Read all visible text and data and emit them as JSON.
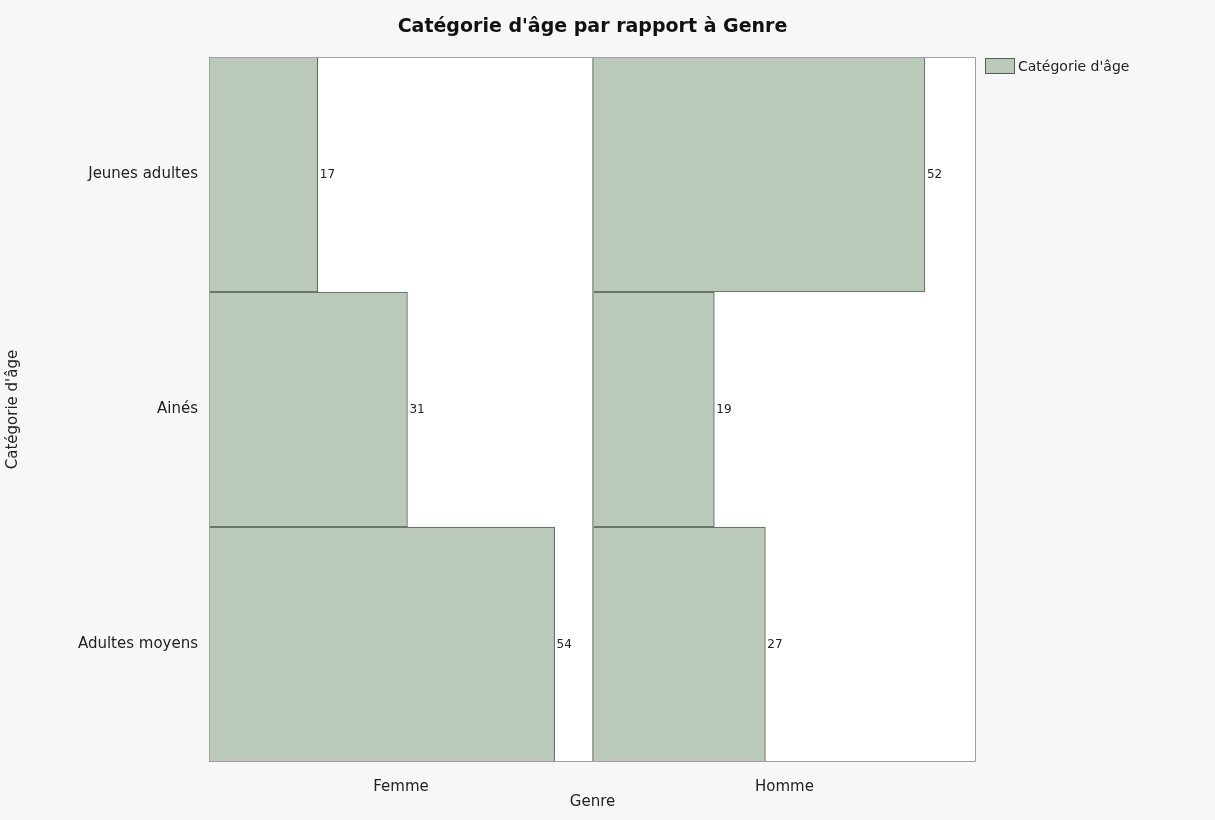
{
  "chart_data": [
    {
      "type": "bar",
      "orientation": "horizontal",
      "title": "Catégorie d'âge par rapport à Genre",
      "ylabel": "Catégorie d'âge",
      "xlabel": "Femme",
      "categories": [
        "Jeunes adultes",
        "Ainés",
        "Adultes moyens"
      ],
      "series": [
        {
          "name": "Catégorie d'âge",
          "color": "#bac9ba",
          "values": [
            17,
            31,
            54
          ]
        }
      ],
      "data_labels": true,
      "tick_labels": "y",
      "legend": "right",
      "annotations": [
        "Genre"
      ]
    },
    {
      "type": "bar",
      "orientation": "horizontal",
      "xlabel": "Homme",
      "categories": [
        null,
        null,
        null
      ],
      "series": [
        {
          "color": "#bac9ba",
          "values": [
            52,
            19,
            27
          ]
        }
      ],
      "data_labels": true,
      "tick_labels": false
    }
  ]
}
